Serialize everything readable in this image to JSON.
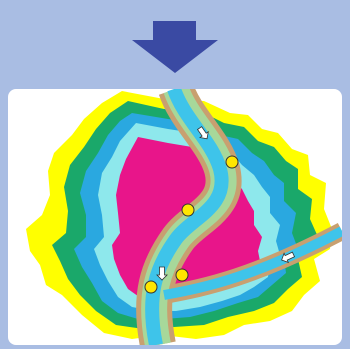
{
  "figure": {
    "header_icon": "down-arrow-icon",
    "colors": {
      "background": "#a9bde3",
      "header_arrow": "#3a4aa3",
      "panel": "#ffffff",
      "zone_outer": "#ffff00",
      "zone_2": "#1aa86a",
      "zone_3": "#2aa8e0",
      "zone_4": "#8ee8ec",
      "zone_core": "#e8158a",
      "river_water": "#3ec4ea",
      "river_bank": "#c8a070",
      "river_levee": "#a7d89a",
      "marker": "#ffe600"
    },
    "river_markers": 4,
    "flow_arrows": 3
  }
}
